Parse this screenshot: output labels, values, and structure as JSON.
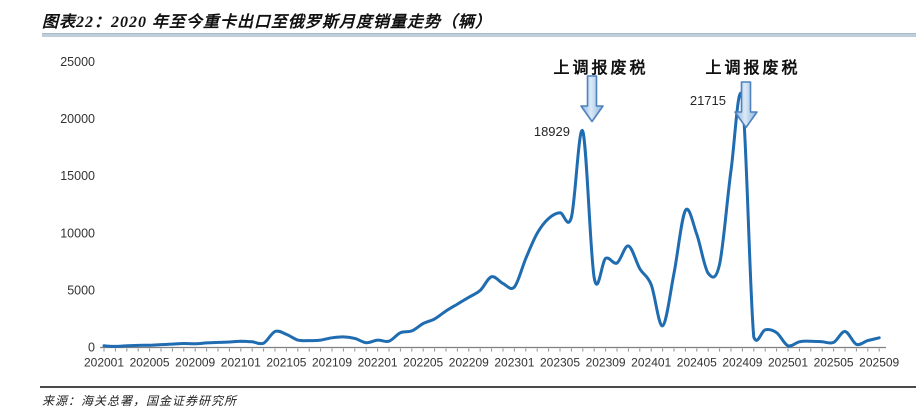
{
  "figure": {
    "title": "图表22：2020 年至今重卡出口至俄罗斯月度销量走势（辆）",
    "source": "来源：海关总署，国金证券研究所"
  },
  "chart_data": {
    "type": "line",
    "title": "2020 年至今重卡出口至俄罗斯月度销量走势（辆）",
    "series_name": "重卡出口至俄罗斯月度销量（辆）",
    "line_color": "#1f6cb1",
    "grid": false,
    "legend": "none",
    "ylim": [
      0,
      25000
    ],
    "y_ticks": [
      0,
      5000,
      10000,
      15000,
      20000,
      25000
    ],
    "x_tick_labels": [
      "202001",
      "202005",
      "202009",
      "202101",
      "202105",
      "202109",
      "202201",
      "202205",
      "202209",
      "202301",
      "202305",
      "202309",
      "202401",
      "202405",
      "202409",
      "202501",
      "202505",
      "202509"
    ],
    "x": [
      "202001",
      "202002",
      "202003",
      "202004",
      "202005",
      "202006",
      "202007",
      "202008",
      "202009",
      "202010",
      "202011",
      "202012",
      "202101",
      "202102",
      "202103",
      "202104",
      "202105",
      "202106",
      "202107",
      "202108",
      "202109",
      "202110",
      "202111",
      "202112",
      "202201",
      "202202",
      "202203",
      "202204",
      "202205",
      "202206",
      "202207",
      "202208",
      "202209",
      "202210",
      "202211",
      "202212",
      "202301",
      "202302",
      "202303",
      "202304",
      "202305",
      "202306",
      "202307",
      "202308",
      "202309",
      "202310",
      "202311",
      "202312",
      "202401",
      "202402",
      "202403",
      "202404",
      "202405",
      "202406",
      "202407",
      "202408",
      "202409",
      "202410",
      "202411",
      "202412",
      "202501",
      "202502",
      "202503",
      "202504",
      "202505",
      "202506",
      "202507",
      "202508",
      "202509"
    ],
    "values": [
      150,
      100,
      150,
      180,
      200,
      250,
      300,
      350,
      320,
      400,
      450,
      480,
      550,
      500,
      380,
      1400,
      1150,
      650,
      600,
      650,
      850,
      930,
      800,
      420,
      650,
      550,
      1300,
      1450,
      2100,
      2500,
      3200,
      3800,
      4400,
      5000,
      6200,
      5600,
      5300,
      7800,
      10000,
      11300,
      11800,
      11400,
      18929,
      6100,
      7800,
      7400,
      8900,
      6900,
      5500,
      1900,
      6500,
      12000,
      9900,
      6500,
      7300,
      15500,
      21715,
      900,
      1550,
      1300,
      150,
      500,
      550,
      500,
      450,
      1400,
      280,
      600,
      850
    ],
    "value_labels": [
      {
        "month": "202307",
        "value": 18929,
        "text": "18929"
      },
      {
        "month": "202409",
        "value": 21715,
        "text": "21715"
      }
    ],
    "event_annotations": [
      {
        "text": "上调报废税",
        "points_to": "202308"
      },
      {
        "text": "上调报废税",
        "points_to": "202410"
      }
    ]
  }
}
